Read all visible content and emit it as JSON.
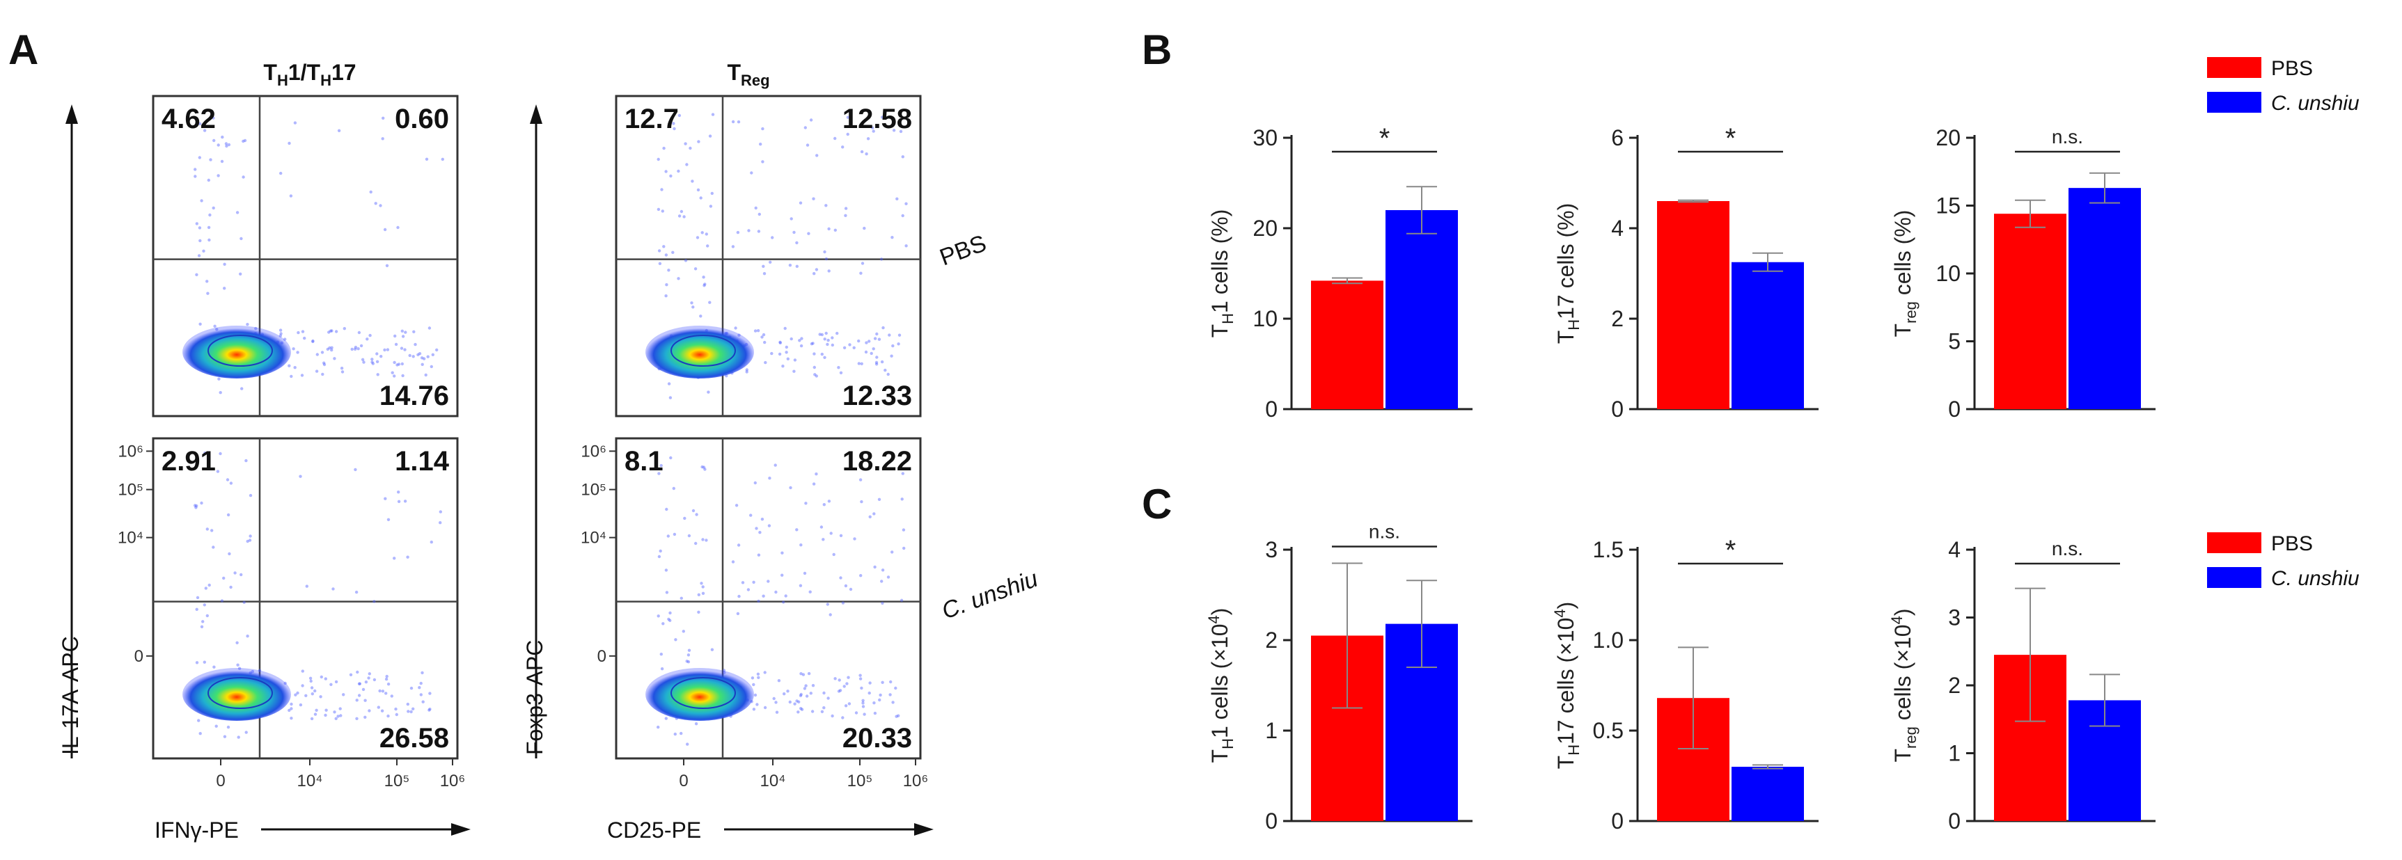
{
  "panels": {
    "a": {
      "letter": "A",
      "col_titles": [
        "TH1/TH17",
        "TReg"
      ],
      "col_title_parts": [
        {
          "base1": "T",
          "sub1": "H",
          "mid": "1/T",
          "sub2": "H",
          "tail": "17"
        },
        {
          "base1": "T",
          "sub1": "Reg",
          "mid": "",
          "sub2": "",
          "tail": ""
        }
      ],
      "row_labels": [
        "PBS",
        "C. unshiu"
      ],
      "x_axes": [
        "IFNγ-PE",
        "CD25-PE"
      ],
      "y_axes": [
        "IL-17A-APC",
        "Foxp3-APC"
      ],
      "tick_labels": [
        "0",
        "10⁴",
        "10⁵",
        "10⁶"
      ],
      "quadrants": [
        {
          "ul": "4.62",
          "ur": "0.60",
          "lr": "14.76"
        },
        {
          "ul": "12.7",
          "ur": "12.58",
          "lr": "12.33"
        },
        {
          "ul": "2.91",
          "ur": "1.14",
          "lr": "26.58"
        },
        {
          "ul": "8.1",
          "ur": "18.22",
          "lr": "20.33"
        }
      ]
    },
    "b": {
      "letter": "B"
    },
    "c": {
      "letter": "C"
    }
  },
  "legend": {
    "series": [
      "PBS",
      "C. unshiu"
    ],
    "colors": [
      "#ff0000",
      "#0000ff"
    ]
  },
  "chart_data": [
    {
      "type": "bar",
      "panel": "B",
      "title": "",
      "xlabel": "",
      "ylabel": "TH1 cells (%)",
      "ylabel_parts": {
        "base": "T",
        "sub": "H",
        "rest": "1 cells (%)",
        "sup": ""
      },
      "categories": [
        "PBS",
        "C. unshiu"
      ],
      "values": [
        14.2,
        22.0
      ],
      "errors": [
        0.3,
        2.6
      ],
      "ylim": [
        0,
        30
      ],
      "yticks": [
        "0",
        "10",
        "20",
        "30"
      ],
      "significance": "*"
    },
    {
      "type": "bar",
      "panel": "B",
      "title": "",
      "xlabel": "",
      "ylabel": "TH17 cells (%)",
      "ylabel_parts": {
        "base": "T",
        "sub": "H",
        "rest": "17 cells (%)",
        "sup": ""
      },
      "categories": [
        "PBS",
        "C. unshiu"
      ],
      "values": [
        4.6,
        3.25
      ],
      "errors": [
        0.02,
        0.2
      ],
      "ylim": [
        0,
        6
      ],
      "yticks": [
        "0",
        "2",
        "4",
        "6"
      ],
      "significance": "*"
    },
    {
      "type": "bar",
      "panel": "B",
      "title": "",
      "xlabel": "",
      "ylabel": "Treg cells (%)",
      "ylabel_parts": {
        "base": "T",
        "sub": "reg",
        "rest": " cells (%)",
        "sup": ""
      },
      "categories": [
        "PBS",
        "C. unshiu"
      ],
      "values": [
        14.4,
        16.3
      ],
      "errors": [
        1.0,
        1.1
      ],
      "ylim": [
        0,
        20
      ],
      "yticks": [
        "0",
        "5",
        "10",
        "15",
        "20"
      ],
      "significance": "n.s."
    },
    {
      "type": "bar",
      "panel": "C",
      "title": "",
      "xlabel": "",
      "ylabel": "TH1 cells (×10⁴)",
      "ylabel_parts": {
        "base": "T",
        "sub": "H",
        "rest": "1 cells (×10",
        "sup": "4"
      },
      "categories": [
        "PBS",
        "C. unshiu"
      ],
      "values": [
        2.05,
        2.18
      ],
      "errors": [
        0.8,
        0.48
      ],
      "ylim": [
        0,
        3
      ],
      "yticks": [
        "0",
        "1",
        "2",
        "3"
      ],
      "significance": "n.s."
    },
    {
      "type": "bar",
      "panel": "C",
      "title": "",
      "xlabel": "",
      "ylabel": "TH17 cells (×10⁴)",
      "ylabel_parts": {
        "base": "T",
        "sub": "H",
        "rest": "17 cells (×10",
        "sup": "4"
      },
      "categories": [
        "PBS",
        "C. unshiu"
      ],
      "values": [
        0.68,
        0.3
      ],
      "errors": [
        0.28,
        0.01
      ],
      "ylim": [
        0,
        1.5
      ],
      "yticks": [
        "0",
        "0.5",
        "1.0",
        "1.5"
      ],
      "significance": "*"
    },
    {
      "type": "bar",
      "panel": "C",
      "title": "",
      "xlabel": "",
      "ylabel": "Treg cells (×10⁴)",
      "ylabel_parts": {
        "base": "T",
        "sub": "reg",
        "rest": " cells (×10",
        "sup": "4"
      },
      "categories": [
        "PBS",
        "C. unshiu"
      ],
      "values": [
        2.45,
        1.78
      ],
      "errors": [
        0.98,
        0.38
      ],
      "ylim": [
        0,
        4
      ],
      "yticks": [
        "0",
        "1",
        "2",
        "3",
        "4"
      ],
      "significance": "n.s."
    }
  ]
}
